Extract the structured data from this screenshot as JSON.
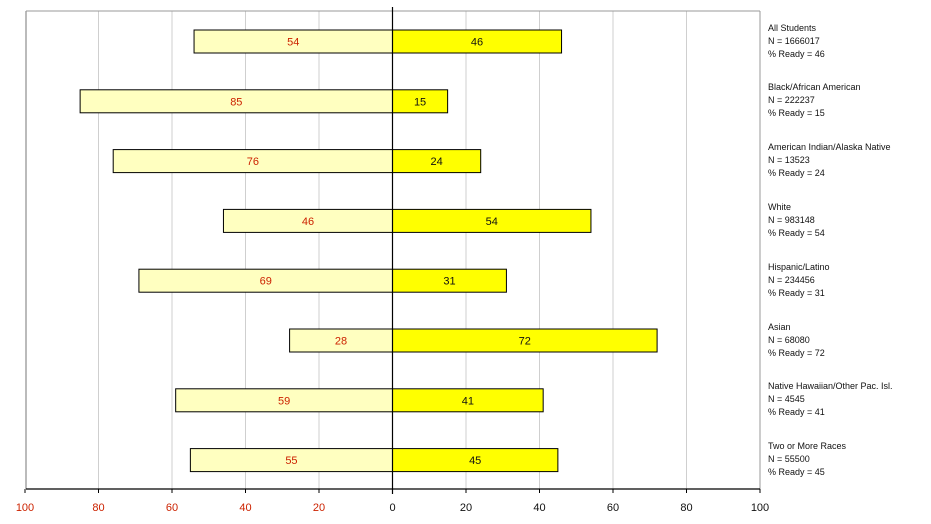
{
  "chart_data": {
    "type": "bar",
    "orientation": "horizontal-diverging",
    "categories": [
      {
        "group": "All Students",
        "n_label": "N = 1666017",
        "ready_label": "% Ready = 46"
      },
      {
        "group": "Black/African American",
        "n_label": "N = 222237",
        "ready_label": "% Ready = 15"
      },
      {
        "group": "American Indian/Alaska Native",
        "n_label": "N = 13523",
        "ready_label": "% Ready = 24"
      },
      {
        "group": "White",
        "n_label": "N = 983148",
        "ready_label": "% Ready = 54"
      },
      {
        "group": "Hispanic/Latino",
        "n_label": "N = 234456",
        "ready_label": "% Ready = 31"
      },
      {
        "group": "Asian",
        "n_label": "N = 68080",
        "ready_label": "% Ready = 72"
      },
      {
        "group": "Native Hawaiian/Other Pac. Isl.",
        "n_label": "N = 4545",
        "ready_label": "% Ready = 41"
      },
      {
        "group": "Two or More Races",
        "n_label": "N = 55500",
        "ready_label": "% Ready = 45"
      }
    ],
    "series": [
      {
        "side": "left",
        "values": [
          54,
          85,
          76,
          46,
          69,
          28,
          59,
          55
        ],
        "color": "#ffffc0",
        "label_color": "#cc2200"
      },
      {
        "side": "right",
        "values": [
          46,
          15,
          24,
          54,
          31,
          72,
          41,
          45
        ],
        "color": "#ffff00",
        "label_color": "#111111"
      }
    ],
    "xlim": [
      -100,
      100
    ],
    "x_ticks": [
      "100",
      "80",
      "60",
      "40",
      "20",
      "0",
      "20",
      "40",
      "60",
      "80",
      "100"
    ],
    "left_tick_color": "#cc2200",
    "right_tick_color": "#111111",
    "grid": true
  }
}
